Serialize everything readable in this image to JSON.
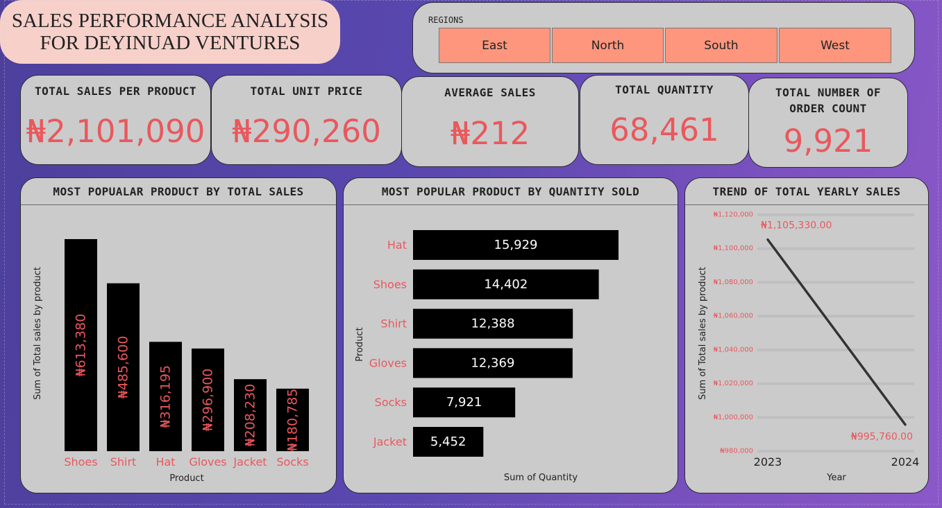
{
  "title": {
    "line1": "SALES PERFORMANCE ANALYSIS",
    "line2": "FOR DEYINUAD VENTURES"
  },
  "regions": {
    "label": "REGIONS",
    "items": [
      "East",
      "North",
      "South",
      "West"
    ]
  },
  "kpis": [
    {
      "title": "TOTAL SALES PER PRODUCT",
      "value": "₦2,101,090"
    },
    {
      "title": "TOTAL UNIT PRICE",
      "value": "₦290,260"
    },
    {
      "title": "AVERAGE SALES",
      "value": "₦212"
    },
    {
      "title": "TOTAL QUANTITY",
      "value": "68,461"
    },
    {
      "title_line1": "TOTAL NUMBER OF",
      "title_line2": "ORDER COUNT",
      "value": "9,921"
    }
  ],
  "colors": {
    "accent": "#e9585d",
    "bar": "#000000",
    "panel": "#cbcbcb",
    "region_button": "#fd967d",
    "title_bg": "#f7d0ca"
  },
  "chart_data": [
    {
      "type": "bar",
      "title": "MOST POPUALAR PRODUCT BY TOTAL SALES",
      "xlabel": "Product",
      "ylabel": "Sum of Total sales by product",
      "categories": [
        "Shoes",
        "Shirt",
        "Hat",
        "Gloves",
        "Jacket",
        "Socks"
      ],
      "values": [
        613380,
        485600,
        316195,
        296900,
        208230,
        180785
      ],
      "data_labels": [
        "₦613,380",
        "₦485,600",
        "₦316,195",
        "₦296,900",
        "₦208,230",
        "₦180,785"
      ],
      "ylim": [
        0,
        613380
      ]
    },
    {
      "type": "bar",
      "orientation": "horizontal",
      "title": "MOST POPULAR PRODUCT BY QUANTITY SOLD",
      "xlabel": "Sum of Quantity",
      "ylabel": "Product",
      "categories": [
        "Hat",
        "Shoes",
        "Shirt",
        "Gloves",
        "Socks",
        "Jacket"
      ],
      "values": [
        15929,
        14402,
        12388,
        12369,
        7921,
        5452
      ],
      "data_labels": [
        "15,929",
        "14,402",
        "12,388",
        "12,369",
        "7,921",
        "5,452"
      ],
      "xlim": [
        0,
        15929
      ]
    },
    {
      "type": "line",
      "title": "TREND OF TOTAL YEARLY SALES",
      "xlabel": "Year",
      "ylabel": "Sum of Total sales by product",
      "x": [
        "2023",
        "2024"
      ],
      "values": [
        1105330,
        995760
      ],
      "data_labels": [
        "₦1,105,330.00",
        "₦995,760.00"
      ],
      "ylim": [
        980000,
        1120000
      ],
      "yticks": [
        980000,
        1000000,
        1020000,
        1040000,
        1060000,
        1080000,
        1100000,
        1120000
      ],
      "ytick_labels": [
        "₦980,000",
        "₦1,000,000",
        "₦1,020,000",
        "₦1,040,000",
        "₦1,060,000",
        "₦1,080,000",
        "₦1,100,000",
        "₦1,120,000"
      ],
      "grid": true
    }
  ]
}
